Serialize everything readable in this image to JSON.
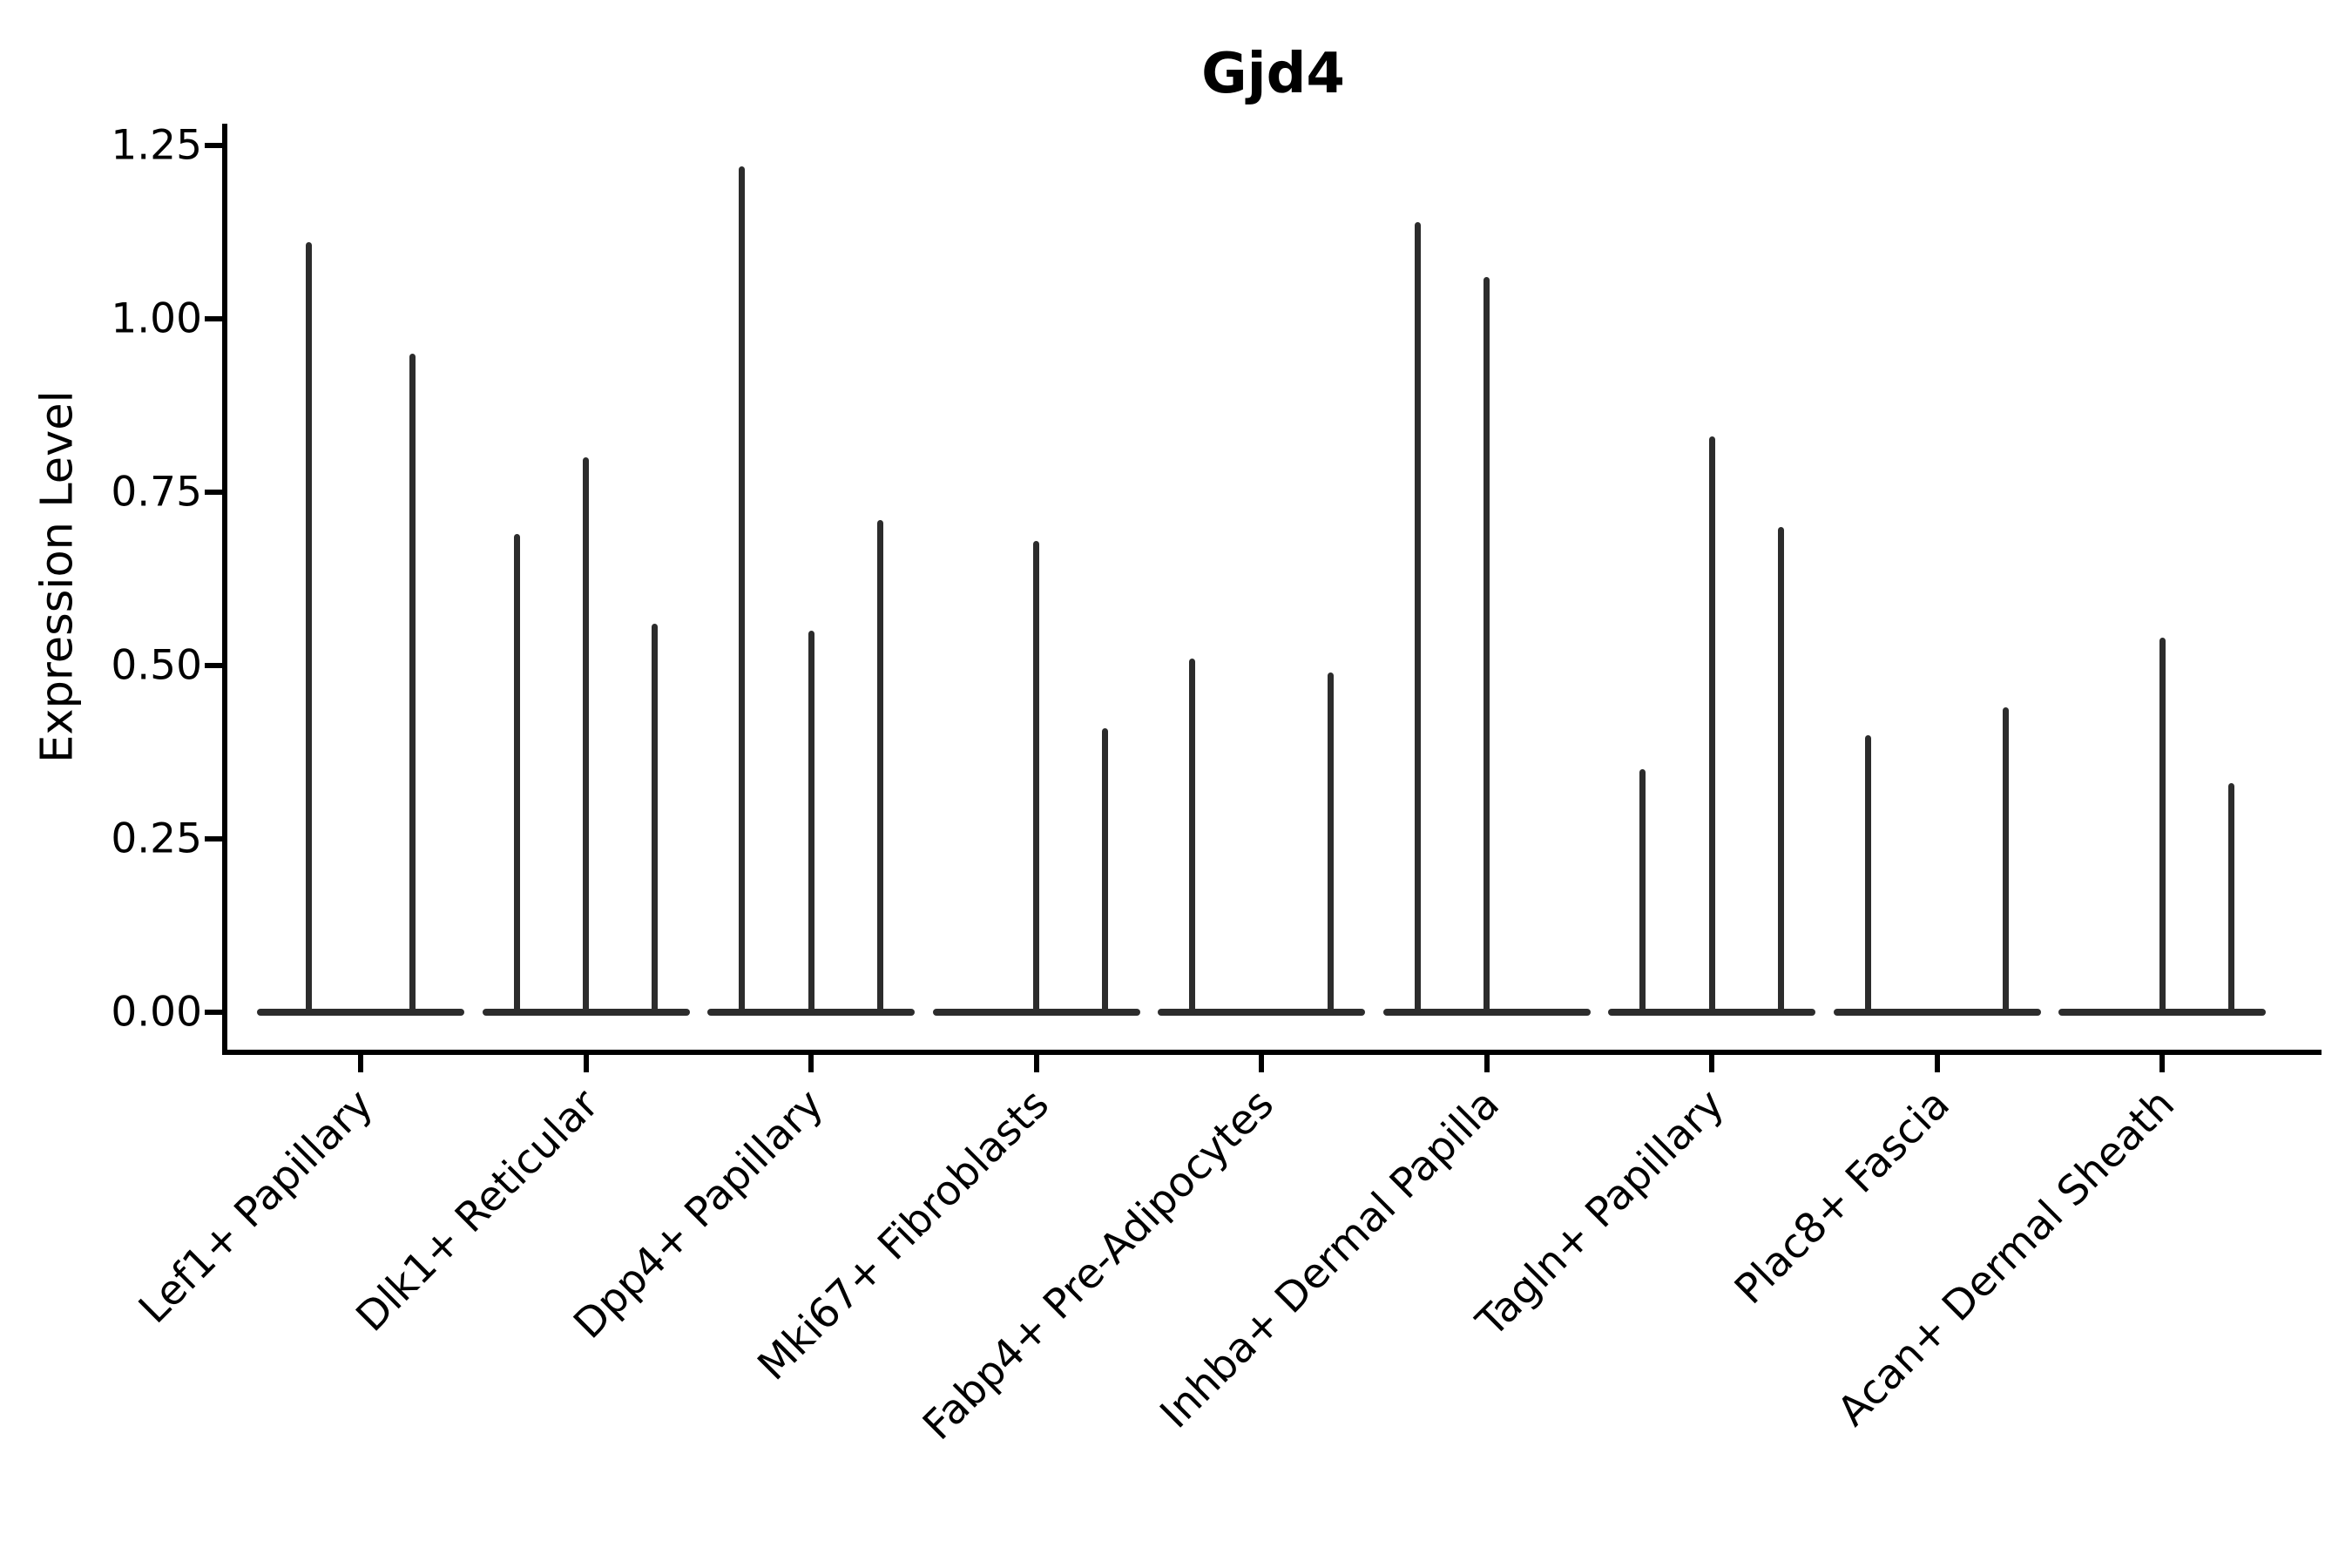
{
  "figure": {
    "title": "Gjd4",
    "background_color": "#ffffff",
    "axis_color": "#000000",
    "violin_color": "#2c2c2c"
  },
  "y_axis": {
    "label": "Expression Level",
    "tick_labels": [
      "0.00",
      "0.25",
      "0.50",
      "0.75",
      "1.00",
      "1.25"
    ]
  },
  "x_axis": {
    "tick_labels": [
      "Lef1+ Papillary",
      "Dlk1+ Reticular",
      "Dpp4+ Papillary",
      "Mki67+ Fibroblasts",
      "Fabp4+ Pre-Adipocytes",
      "Inhba+ Dermal Papilla",
      "Tagln+ Papillary",
      "Plac8+ Fascia",
      "Acan+ Dermal Sheath"
    ]
  },
  "chart_data": {
    "type": "violin",
    "title": "Gjd4",
    "xlabel": "",
    "ylabel": "Expression Level",
    "ylim": [
      0,
      1.3
    ],
    "yticks": [
      0.0,
      0.25,
      0.5,
      0.75,
      1.0,
      1.25
    ],
    "grid": false,
    "legend": null,
    "categories": [
      "Lef1+ Papillary",
      "Dlk1+ Reticular",
      "Dpp4+ Papillary",
      "Mki67+ Fibroblasts",
      "Fabp4+ Pre-Adipocytes",
      "Inhba+ Dermal Papilla",
      "Tagln+ Papillary",
      "Plac8+ Fascia",
      "Acan+ Dermal Sheath"
    ],
    "series": [
      {
        "category": "Lef1+ Papillary",
        "violin_maxima": [
          1.11,
          0.95
        ]
      },
      {
        "category": "Dlk1+ Reticular",
        "violin_maxima": [
          0.69,
          0.8,
          0.56
        ]
      },
      {
        "category": "Dpp4+ Papillary",
        "violin_maxima": [
          1.22,
          0.55,
          0.71
        ]
      },
      {
        "category": "Mki67+ Fibroblasts",
        "violin_maxima": [
          0.0,
          0.68,
          0.41
        ]
      },
      {
        "category": "Fabp4+ Pre-Adipocytes",
        "violin_maxima": [
          0.51,
          0.0,
          0.49
        ]
      },
      {
        "category": "Inhba+ Dermal Papilla",
        "violin_maxima": [
          1.14,
          1.06,
          0.0
        ]
      },
      {
        "category": "Tagln+ Papillary",
        "violin_maxima": [
          0.35,
          0.83,
          0.7
        ]
      },
      {
        "category": "Plac8+ Fascia",
        "violin_maxima": [
          0.4,
          0.0,
          0.44
        ]
      },
      {
        "category": "Acan+ Dermal Sheath",
        "violin_maxima": [
          0.0,
          0.54,
          0.33
        ]
      }
    ],
    "note": "Each violin collapses to a flat base at expression 0 with a thin vertical spike reaching its maximum expression value; zero entries are all-zero (flat) violins."
  }
}
